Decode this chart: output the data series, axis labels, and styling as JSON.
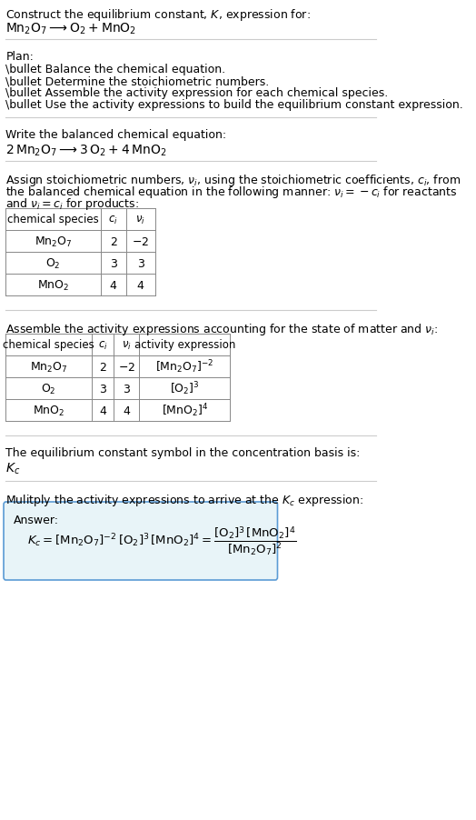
{
  "title_line1": "Construct the equilibrium constant, $K$, expression for:",
  "title_line2": "$\\mathrm{Mn_2O_7} \\longrightarrow \\mathrm{O_2 + MnO_2}$",
  "plan_header": "Plan:",
  "plan_items": [
    "\\bullet Balance the chemical equation.",
    "\\bullet Determine the stoichiometric numbers.",
    "\\bullet Assemble the activity expression for each chemical species.",
    "\\bullet Use the activity expressions to build the equilibrium constant expression."
  ],
  "balanced_header": "Write the balanced chemical equation:",
  "balanced_eq": "$2\\,\\mathrm{Mn_2O_7} \\longrightarrow 3\\,\\mathrm{O_2} + 4\\,\\mathrm{MnO_2}$",
  "stoich_header_line1": "Assign stoichiometric numbers, $\\nu_i$, using the stoichiometric coefficients, $c_i$, from",
  "stoich_header_line2": "the balanced chemical equation in the following manner: $\\nu_i = -c_i$ for reactants",
  "stoich_header_line3": "and $\\nu_i = c_i$ for products:",
  "table1_headers": [
    "chemical species",
    "$c_i$",
    "$\\nu_i$"
  ],
  "table1_rows": [
    [
      "$\\mathrm{Mn_2O_7}$",
      "2",
      "$-2$"
    ],
    [
      "$\\mathrm{O_2}$",
      "3",
      "3"
    ],
    [
      "$\\mathrm{MnO_2}$",
      "4",
      "4"
    ]
  ],
  "assemble_header": "Assemble the activity expressions accounting for the state of matter and $\\nu_i$:",
  "table2_headers": [
    "chemical species",
    "$c_i$",
    "$\\nu_i$",
    "activity expression"
  ],
  "table2_rows": [
    [
      "$\\mathrm{Mn_2O_7}$",
      "2",
      "$-2$",
      "$[\\mathrm{Mn_2O_7}]^{-2}$"
    ],
    [
      "$\\mathrm{O_2}$",
      "3",
      "3",
      "$[\\mathrm{O_2}]^3$"
    ],
    [
      "$\\mathrm{MnO_2}$",
      "4",
      "4",
      "$[\\mathrm{MnO_2}]^4$"
    ]
  ],
  "kc_header": "The equilibrium constant symbol in the concentration basis is:",
  "kc_symbol": "$K_c$",
  "multiply_header": "Mulitply the activity expressions to arrive at the $K_c$ expression:",
  "answer_label": "Answer:",
  "answer_eq_line1": "$K_c = [\\mathrm{Mn_2O_7}]^{-2}\\,[\\mathrm{O_2}]^3\\,[\\mathrm{MnO_2}]^4 = \\dfrac{[\\mathrm{O_2}]^3\\,[\\mathrm{MnO_2}]^4}{[\\mathrm{Mn_2O_7}]^2}$",
  "bg_color": "#ffffff",
  "text_color": "#000000",
  "table_header_bg": "#f0f0f0",
  "answer_box_bg": "#e8f4f8",
  "answer_box_border": "#5b9bd5",
  "divider_color": "#aaaaaa",
  "font_size": 9,
  "table_font_size": 9
}
